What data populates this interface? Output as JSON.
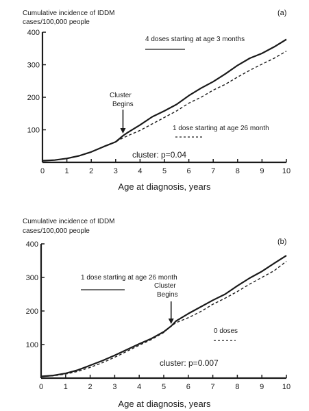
{
  "chart_data": [
    {
      "type": "line",
      "panel": "(a)",
      "ylabel_line1": "Cumulative incidence of IDDM",
      "ylabel_line2": "cases/100,000 people",
      "xlabel": "Age at diagnosis, years",
      "xlim": [
        0,
        10
      ],
      "ylim": [
        0,
        400
      ],
      "xticks": [
        0,
        1,
        2,
        3,
        4,
        5,
        6,
        7,
        8,
        9,
        10
      ],
      "yticks": [
        100,
        200,
        300,
        400
      ],
      "series": [
        {
          "name": "4 doses starting at age 3 months",
          "style": "solid",
          "x": [
            0,
            0.5,
            1,
            1.5,
            2,
            2.5,
            3,
            3.3,
            3.5,
            4,
            4.5,
            5,
            5.5,
            6,
            6.5,
            7,
            7.5,
            8,
            8.5,
            9,
            9.5,
            10
          ],
          "y": [
            5,
            7,
            12,
            20,
            32,
            48,
            63,
            82,
            92,
            115,
            140,
            158,
            178,
            205,
            228,
            248,
            272,
            298,
            320,
            335,
            355,
            378
          ]
        },
        {
          "name": "1 dose starting at age 26 month",
          "style": "dashed",
          "x": [
            0,
            0.5,
            1,
            1.5,
            2,
            2.5,
            3,
            3.3,
            3.5,
            4,
            4.5,
            5,
            5.5,
            6,
            6.5,
            7,
            7.5,
            8,
            8.5,
            9,
            9.5,
            10
          ],
          "y": [
            5,
            7,
            12,
            20,
            32,
            48,
            63,
            75,
            82,
            98,
            118,
            138,
            158,
            182,
            200,
            222,
            240,
            262,
            283,
            302,
            320,
            342
          ]
        }
      ],
      "annotation": {
        "line1": "Cluster",
        "line2": "Begins",
        "x": 3.3,
        "y": 82
      },
      "stat": "cluster: p=0.04"
    },
    {
      "type": "line",
      "panel": "(b)",
      "ylabel_line1": "Cumulative incidence of IDDM",
      "ylabel_line2": "cases/100,000 people",
      "xlabel": "Age at diagnosis, years",
      "xlim": [
        0,
        10
      ],
      "ylim": [
        0,
        400
      ],
      "xticks": [
        0,
        1,
        2,
        3,
        4,
        5,
        6,
        7,
        8,
        9,
        10
      ],
      "yticks": [
        100,
        200,
        300,
        400
      ],
      "series": [
        {
          "name": "1 dose starting at age 26 month",
          "style": "solid",
          "x": [
            0,
            0.5,
            1,
            1.5,
            2,
            2.5,
            3,
            3.5,
            4,
            4.5,
            5,
            5.3,
            5.5,
            6,
            6.5,
            7,
            7.5,
            8,
            8.5,
            9,
            9.5,
            10
          ],
          "y": [
            5,
            8,
            14,
            24,
            38,
            52,
            68,
            85,
            102,
            118,
            138,
            155,
            170,
            192,
            212,
            232,
            250,
            275,
            298,
            318,
            342,
            365
          ]
        },
        {
          "name": "0 doses",
          "style": "dashed",
          "x": [
            0,
            0.5,
            1,
            1.5,
            2,
            2.5,
            3,
            3.5,
            4,
            4.5,
            5,
            5.3,
            5.5,
            6,
            6.5,
            7,
            7.5,
            8,
            8.5,
            9,
            9.5,
            10
          ],
          "y": [
            5,
            7,
            12,
            20,
            32,
            46,
            62,
            80,
            98,
            115,
            136,
            155,
            165,
            180,
            198,
            220,
            238,
            258,
            280,
            300,
            320,
            348
          ]
        }
      ],
      "annotation": {
        "line1": "Cluster",
        "line2": "Begins",
        "x": 5.3,
        "y": 155
      },
      "stat": "cluster: p=0.007"
    }
  ]
}
